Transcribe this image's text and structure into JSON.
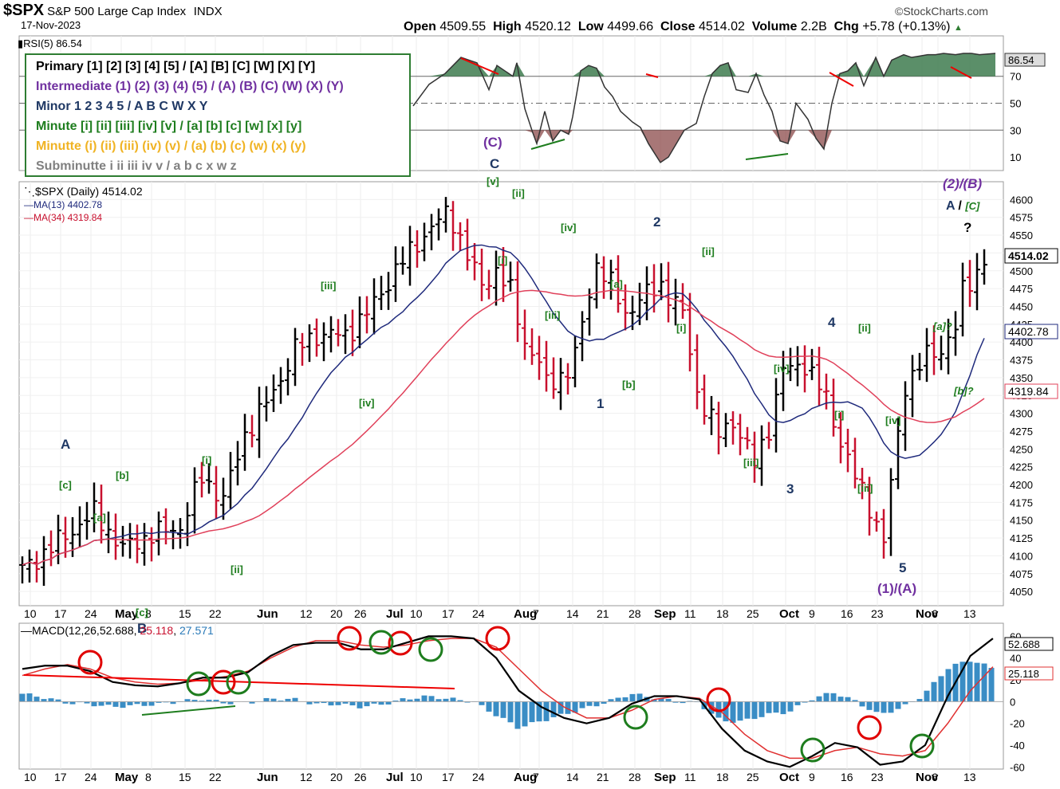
{
  "header": {
    "symbol": "$SPX",
    "name": "S&P 500 Large Cap Index",
    "exchange": "INDX",
    "date": "17-Nov-2023",
    "brand": "©StockCharts.com",
    "open_label": "Open",
    "open": "4509.55",
    "high_label": "High",
    "high": "4520.12",
    "low_label": "Low",
    "low": "4499.66",
    "close_label": "Close",
    "close": "4514.02",
    "volume_label": "Volume",
    "volume": "2.2B",
    "chg_label": "Chg",
    "chg": "+5.78 (+0.13%)"
  },
  "legend": [
    {
      "text": "Primary [1] [2] [3] [4] [5] / [A] [B] [C] [W] [X] [Y]",
      "color": "#000000"
    },
    {
      "text": "Intermediate (1) (2) (3) (4) (5) / (A) (B) (C) (W) (X) (Y)",
      "color": "#7030a0"
    },
    {
      "text": "Minor 1 2 3 4 5 / A B C W X Y",
      "color": "#1f3864"
    },
    {
      "text": "Minute [i] [ii] [iii] [iv] [v] / [a] [b] [c] [w] [x] [y]",
      "color": "#1e7d1e"
    },
    {
      "text": "Minutte (i) (ii) (iii) (iv) (v) / (a) (b) (c) (w) (x) (y)",
      "color": "#f0b323"
    },
    {
      "text": "Subminutte i ii iii iv v / a b c x w z",
      "color": "#808080"
    }
  ],
  "rsi_label": "RSI(5) 86.54",
  "price_label": "$SPX (Daily) 4514.02",
  "ma13_label": "MA(13) 4402.78",
  "ma34_label": "MA(34) 4319.84",
  "macd_label": {
    "prefix": "MACD(12,26,",
    "v1": "52.688",
    "v2": "25.118",
    "v3": "27.571"
  },
  "chart_data": [
    {
      "type": "line",
      "panel": "RSI(5)",
      "ylim": [
        0,
        100
      ],
      "reference_lines": [
        70,
        50,
        30
      ],
      "y_ticks": [
        10,
        30,
        50,
        70
      ],
      "last_value": "86.54",
      "x": [
        0,
        4,
        8,
        12,
        14,
        16,
        19,
        21,
        23,
        25,
        26,
        28,
        30,
        31,
        33,
        35,
        37,
        39,
        40,
        42,
        44,
        46,
        48,
        50,
        52,
        55,
        57,
        59,
        62,
        64,
        66,
        68,
        71,
        73,
        75,
        77,
        79,
        81,
        84,
        86,
        88,
        90,
        92,
        94,
        96,
        99,
        101,
        103,
        105,
        107,
        109,
        111,
        113,
        116,
        118,
        120,
        123,
        125,
        127,
        129,
        131,
        133,
        136,
        138,
        140,
        142,
        146
      ],
      "values": [
        48,
        64,
        72,
        84,
        82,
        80,
        60,
        78,
        74,
        70,
        80,
        46,
        28,
        20,
        44,
        22,
        30,
        27,
        40,
        74,
        78,
        76,
        62,
        55,
        44,
        36,
        32,
        20,
        6,
        10,
        20,
        30,
        35,
        55,
        72,
        78,
        80,
        60,
        58,
        72,
        56,
        44,
        22,
        20,
        50,
        38,
        24,
        16,
        50,
        72,
        74,
        80,
        63,
        84,
        70,
        82,
        86,
        84,
        85,
        86,
        86,
        87,
        86,
        87,
        87,
        86,
        87
      ]
    },
    {
      "type": "ohlc",
      "panel": "$SPX (Daily)",
      "ylim": [
        4030,
        4625
      ],
      "y_ticks": [
        4050,
        4075,
        4100,
        4125,
        4150,
        4175,
        4200,
        4225,
        4250,
        4275,
        4300,
        4325,
        4350,
        4375,
        4400,
        4425,
        4450,
        4475,
        4500,
        4525,
        4550,
        4575,
        4600
      ],
      "x_ticks": [
        "10",
        "17",
        "24",
        "May",
        "8",
        "15",
        "22",
        "Jun",
        "12",
        "20",
        "26",
        "Jul",
        "10",
        "17",
        "24",
        "Aug",
        "7",
        "14",
        "21",
        "28",
        "Sep",
        "11",
        "18",
        "25",
        "Oct",
        "9",
        "16",
        "23",
        "Nov",
        "6",
        "13"
      ],
      "close_path": [
        [
          0,
          4080
        ],
        [
          10,
          4160
        ],
        [
          14,
          4110
        ],
        [
          18,
          4130
        ],
        [
          22,
          4140
        ],
        [
          25,
          4210
        ],
        [
          28,
          4180
        ],
        [
          31,
          4270
        ],
        [
          35,
          4330
        ],
        [
          38,
          4390
        ],
        [
          41,
          4410
        ],
        [
          45,
          4410
        ],
        [
          48,
          4440
        ],
        [
          52,
          4500
        ],
        [
          55,
          4540
        ],
        [
          59,
          4580
        ],
        [
          60,
          4570
        ],
        [
          62,
          4520
        ],
        [
          64,
          4480
        ],
        [
          66,
          4500
        ],
        [
          68,
          4470
        ],
        [
          70,
          4400
        ],
        [
          72,
          4370
        ],
        [
          73,
          4340
        ],
        [
          76,
          4360
        ],
        [
          77,
          4380
        ],
        [
          79,
          4470
        ],
        [
          80,
          4510
        ],
        [
          82,
          4480
        ],
        [
          84,
          4440
        ],
        [
          86,
          4460
        ],
        [
          89,
          4480
        ],
        [
          92,
          4440
        ],
        [
          94,
          4330
        ],
        [
          97,
          4270
        ],
        [
          99,
          4290
        ],
        [
          102,
          4230
        ],
        [
          104,
          4280
        ],
        [
          106,
          4360
        ],
        [
          109,
          4370
        ],
        [
          112,
          4320
        ],
        [
          114,
          4260
        ],
        [
          116,
          4210
        ],
        [
          118,
          4170
        ],
        [
          120,
          4120
        ],
        [
          121,
          4200
        ],
        [
          123,
          4340
        ],
        [
          126,
          4380
        ],
        [
          128,
          4390
        ],
        [
          130,
          4420
        ],
        [
          131,
          4470
        ],
        [
          134,
          4515
        ]
      ],
      "ma13_last": "4402.78",
      "ma34_last": "4319.84",
      "last_close": "4514.02"
    },
    {
      "type": "line",
      "panel": "MACD(12,26,9)",
      "ylim": [
        -62,
        72
      ],
      "y_ticks": [
        -60,
        -40,
        -20,
        0,
        20,
        40,
        60
      ],
      "series": [
        {
          "values": [
            30,
            33,
            33,
            28,
            18,
            15,
            14,
            17,
            22,
            22,
            27,
            42,
            52,
            54,
            54,
            48,
            48,
            54,
            60,
            60,
            58,
            40,
            10,
            -5,
            -15,
            -20,
            -15,
            -2,
            5,
            5,
            2,
            -25,
            -45,
            -55,
            -60,
            -50,
            -38,
            -42,
            -58,
            -55,
            -40,
            5,
            42,
            58
          ]
        },
        {
          "values": [
            24,
            30,
            34,
            30,
            22,
            18,
            16,
            17,
            20,
            23,
            28,
            40,
            50,
            56,
            56,
            52,
            50,
            52,
            56,
            58,
            58,
            50,
            30,
            10,
            -5,
            -15,
            -15,
            -8,
            2,
            5,
            3,
            -10,
            -30,
            -45,
            -52,
            -52,
            -45,
            -42,
            -48,
            -50,
            -45,
            -20,
            10,
            32
          ]
        }
      ],
      "last_values": [
        "52.688",
        "25.118",
        "27.571"
      ]
    }
  ],
  "annotations": [
    {
      "t": "A",
      "c": "#1f3864"
    },
    {
      "t": "[c]",
      "c": "#1e7d1e"
    },
    {
      "t": "[a]",
      "c": "#1e7d1e"
    },
    {
      "t": "[b]",
      "c": "#1e7d1e"
    },
    {
      "t": "[c]",
      "c": "#1e7d1e"
    },
    {
      "t": "B",
      "c": "#1f3864"
    },
    {
      "t": "[i]",
      "c": "#1e7d1e"
    },
    {
      "t": "[ii]",
      "c": "#1e7d1e"
    },
    {
      "t": "[iii]",
      "c": "#1e7d1e"
    },
    {
      "t": "[iv]",
      "c": "#1e7d1e"
    },
    {
      "t": "(C)",
      "c": "#7030a0"
    },
    {
      "t": "C",
      "c": "#1f3864"
    },
    {
      "t": "[v]",
      "c": "#1e7d1e"
    },
    {
      "t": "[ii]",
      "c": "#1e7d1e"
    },
    {
      "t": "[i]",
      "c": "#1e7d1e"
    },
    {
      "t": "[iii]",
      "c": "#1e7d1e"
    },
    {
      "t": "[iv]",
      "c": "#1e7d1e"
    },
    {
      "t": "[a]",
      "c": "#1e7d1e"
    },
    {
      "t": "[b]",
      "c": "#1e7d1e"
    },
    {
      "t": "1",
      "c": "#1f3864"
    },
    {
      "t": "2",
      "c": "#1f3864"
    },
    {
      "t": "[i]",
      "c": "#1e7d1e"
    },
    {
      "t": "[ii]",
      "c": "#1e7d1e"
    },
    {
      "t": "[iii]",
      "c": "#1e7d1e"
    },
    {
      "t": "[iv]",
      "c": "#1e7d1e"
    },
    {
      "t": "3",
      "c": "#1f3864"
    },
    {
      "t": "4",
      "c": "#1f3864"
    },
    {
      "t": "[i]",
      "c": "#1e7d1e"
    },
    {
      "t": "[ii]",
      "c": "#1e7d1e"
    },
    {
      "t": "[iii]",
      "c": "#1e7d1e"
    },
    {
      "t": "[iv]",
      "c": "#1e7d1e"
    },
    {
      "t": "5",
      "c": "#1f3864"
    },
    {
      "t": "(1)/(A)",
      "c": "#7030a0"
    },
    {
      "t": "[a]?",
      "c": "#1e7d1e"
    },
    {
      "t": "[b]?",
      "c": "#1e7d1e"
    },
    {
      "t": "(2)/(B)",
      "c": "#7030a0"
    },
    {
      "t": "?",
      "c": "#000000"
    }
  ],
  "annotation_abc": {
    "a": "A",
    "sep": " / ",
    "c": "[C]"
  },
  "colors": {
    "up": "#000000",
    "down": "#c8102e",
    "ma13": "#1f2a7c",
    "ma34": "#e0405a",
    "rsi_line": "#333333",
    "rsi_fill_high": "#3e7b4f",
    "rsi_fill_low": "#8b4a4a",
    "macd_hist": "#3a8dc5",
    "circle_red": "#e00000",
    "circle_green": "#1e7d1e"
  }
}
